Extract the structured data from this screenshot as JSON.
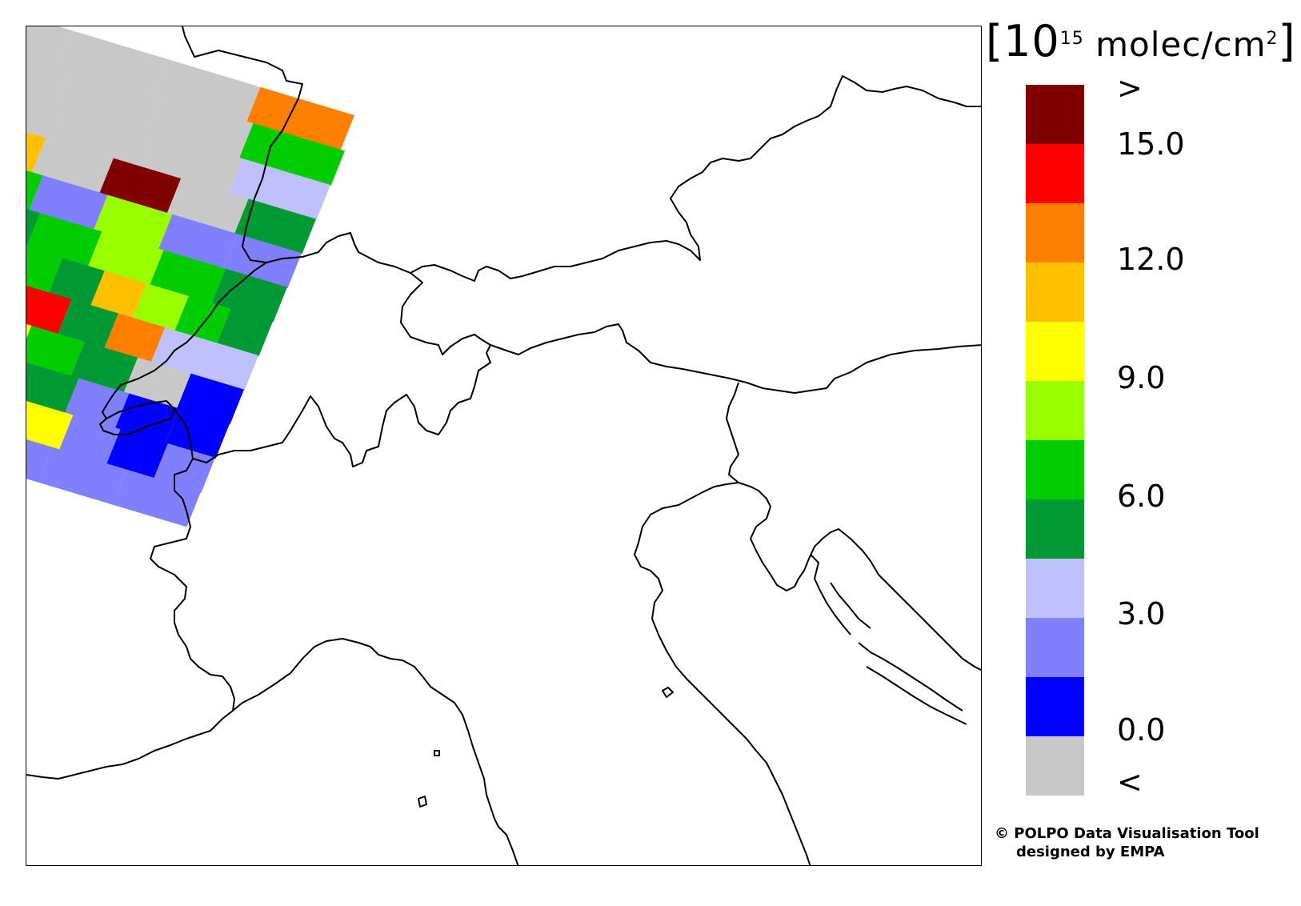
{
  "colorbar": {
    "unit_prefix": "[10",
    "unit_exp": "15",
    "unit_mid": " molec/cm",
    "unit_sq": "2",
    "unit_suffix": "]",
    "colors_top_to_bottom": [
      "#800000",
      "#ff0000",
      "#ff8000",
      "#ffc000",
      "#ffff00",
      "#99ff00",
      "#00cc00",
      "#009933",
      "#c0c0ff",
      "#8080ff",
      "#0000ff",
      "#c8c8c8"
    ],
    "tick_labels": [
      ">",
      "15.0",
      "12.0",
      "9.0",
      "6.0",
      "3.0",
      "0.0",
      "<"
    ]
  },
  "credit": {
    "line1": "© POLPO Data Visualisation Tool",
    "line2": "designed by EMPA"
  },
  "map": {
    "region": "Northern Italy / Alps",
    "swath_pixel_colors": {
      "row1": [
        "#c8c8c8",
        "#c8c8c8",
        "#c8c8c8",
        "#ff8000"
      ],
      "row2": [
        "#c8c8c8",
        "#c8c8c8",
        "#c8c8c8",
        "#00cc00"
      ],
      "row3": [
        "#c8c8c8",
        "#c8c8c8",
        "#c8c8c8",
        "#c0c0ff"
      ],
      "row4": [
        "#ffc000",
        "#c8c8c8",
        "#800000",
        "#c8c8c8",
        "#009933"
      ],
      "row5": [
        "#00cc00",
        "#8080ff",
        "#99ff00",
        "#8080ff",
        "#8080ff"
      ],
      "row6": [
        "#009933",
        "#00cc00",
        "#99ff00",
        "#00cc00",
        "#009933"
      ],
      "row7": [
        "#ff0000",
        "#00cc00",
        "#009933",
        "#ffc000",
        "#99ff00",
        "#00cc00",
        "#009933"
      ],
      "row8": [
        "#c0c0ff",
        "#ff0000",
        "#009933",
        "#ff8000",
        "#c0c0ff",
        "#c0c0ff"
      ],
      "row9": [
        "#ffff00",
        "#00cc00",
        "#009933",
        "#c8c8c8",
        "#0000ff"
      ],
      "row10": [
        "#009933",
        "#009933",
        "#8080ff",
        "#0000ff",
        "#0000ff"
      ],
      "row11": [
        "#00cc00",
        "#ffff00",
        "#8080ff",
        "#0000ff",
        "#8080ff"
      ],
      "row12": [
        "#8080ff",
        "#8080ff",
        "#8080ff"
      ]
    }
  }
}
